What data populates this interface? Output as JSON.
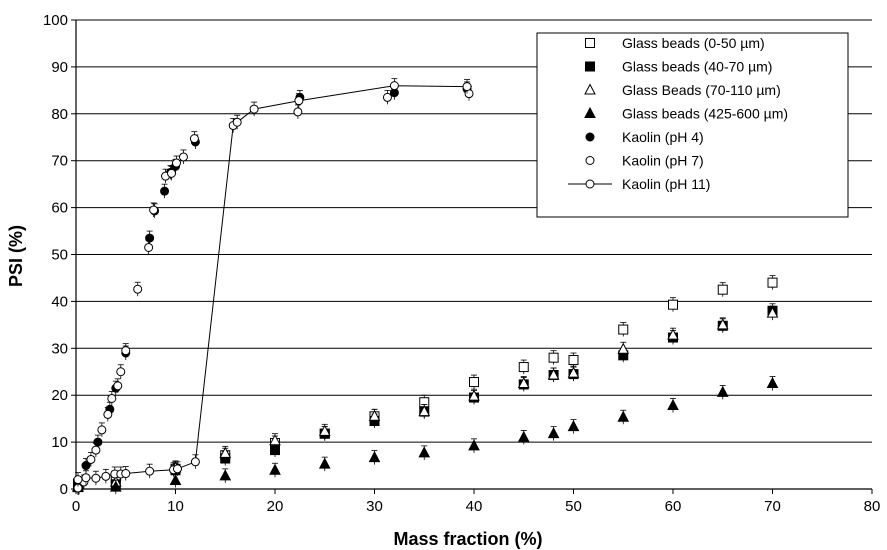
{
  "chart_data": {
    "type": "scatter",
    "title": "",
    "xlabel": "Mass fraction (%)",
    "ylabel": "PSI (%)",
    "xlim": [
      0,
      80
    ],
    "ylim": [
      0,
      100
    ],
    "x_ticks": [
      "0",
      "10",
      "20",
      "30",
      "40",
      "50",
      "60",
      "70",
      "80"
    ],
    "y_ticks": [
      "0",
      "10",
      "20",
      "30",
      "40",
      "50",
      "60",
      "70",
      "80",
      "90",
      "100"
    ],
    "grid": "horizontal",
    "legend_position": "top-right",
    "series": [
      {
        "name": "Glass beads (0-50 µm)",
        "marker": "square-open",
        "points": [
          [
            0.2,
            1.2
          ],
          [
            4,
            2.2
          ],
          [
            10,
            4.3
          ],
          [
            15,
            7.2
          ],
          [
            20,
            9.8
          ],
          [
            25,
            11.8
          ],
          [
            30,
            15.5
          ],
          [
            35,
            18.5
          ],
          [
            40,
            22.8
          ],
          [
            45,
            26
          ],
          [
            48,
            28
          ],
          [
            50,
            27.5
          ],
          [
            55,
            34
          ],
          [
            60,
            39.3
          ],
          [
            65,
            42.5
          ],
          [
            70,
            44
          ]
        ]
      },
      {
        "name": "Glass beads (40-70 µm)",
        "marker": "square-filled",
        "points": [
          [
            0.2,
            0.6
          ],
          [
            4,
            1
          ],
          [
            10,
            4
          ],
          [
            15,
            6.5
          ],
          [
            20,
            8.3
          ],
          [
            25,
            11.8
          ],
          [
            30,
            14.5
          ],
          [
            35,
            16.5
          ],
          [
            40,
            19.5
          ],
          [
            45,
            22.3
          ],
          [
            48,
            24.3
          ],
          [
            50,
            24.5
          ],
          [
            55,
            28.5
          ],
          [
            60,
            32.3
          ],
          [
            65,
            34.8
          ],
          [
            70,
            38
          ]
        ]
      },
      {
        "name": "Glass Beads (70-110 µm)",
        "marker": "triangle-open",
        "points": [
          [
            0.2,
            0.5
          ],
          [
            4,
            1.5
          ],
          [
            10,
            4.5
          ],
          [
            15,
            7.6
          ],
          [
            20,
            10.3
          ],
          [
            25,
            12.3
          ],
          [
            30,
            15.5
          ],
          [
            35,
            16.5
          ],
          [
            40,
            19.8
          ],
          [
            45,
            22.5
          ],
          [
            48,
            24.3
          ],
          [
            50,
            24.7
          ],
          [
            55,
            29.8
          ],
          [
            60,
            32.8
          ],
          [
            65,
            35
          ],
          [
            70,
            37.5
          ]
        ]
      },
      {
        "name": "Glass beads (425-600 µm)",
        "marker": "triangle-filled",
        "points": [
          [
            0.2,
            0.3
          ],
          [
            4,
            0.4
          ],
          [
            10,
            1.8
          ],
          [
            15,
            2.8
          ],
          [
            20,
            4
          ],
          [
            25,
            5.3
          ],
          [
            30,
            6.7
          ],
          [
            35,
            7.7
          ],
          [
            40,
            9.2
          ],
          [
            45,
            11
          ],
          [
            48,
            11.8
          ],
          [
            50,
            13.3
          ],
          [
            55,
            15.3
          ],
          [
            60,
            17.8
          ],
          [
            65,
            20.6
          ],
          [
            70,
            22.5
          ]
        ]
      },
      {
        "name": "Kaolin (pH 4)",
        "marker": "circle-filled",
        "points": [
          [
            0.3,
            0.3
          ],
          [
            1,
            5
          ],
          [
            2.2,
            10
          ],
          [
            3.4,
            17
          ],
          [
            4,
            21.5
          ],
          [
            5,
            29
          ],
          [
            7.4,
            53.5
          ],
          [
            7.9,
            59.3
          ],
          [
            8.9,
            63.5
          ],
          [
            9.5,
            67.5
          ],
          [
            10,
            68.8
          ],
          [
            12,
            74
          ],
          [
            22.5,
            83.5
          ],
          [
            32,
            84.5
          ],
          [
            39.3,
            85.3
          ]
        ]
      },
      {
        "name": "Kaolin (pH 7)",
        "marker": "circle-open",
        "points": [
          [
            0.2,
            0.2
          ],
          [
            0.8,
            1.5
          ],
          [
            1.5,
            6.3
          ],
          [
            2,
            8.3
          ],
          [
            2.6,
            12.6
          ],
          [
            3.2,
            15.9
          ],
          [
            3.6,
            19.3
          ],
          [
            4.2,
            22
          ],
          [
            4.5,
            25
          ],
          [
            5,
            29.5
          ],
          [
            6.2,
            42.6
          ],
          [
            7.3,
            51.5
          ],
          [
            7.8,
            59.5
          ],
          [
            9,
            66.7
          ],
          [
            9.6,
            67.3
          ],
          [
            10.1,
            69.5
          ],
          [
            10.8,
            70.8
          ],
          [
            11.9,
            74.7
          ],
          [
            22.3,
            80.4
          ],
          [
            31.3,
            83.5
          ],
          [
            39.5,
            84.3
          ]
        ]
      },
      {
        "name": "Kaolin (pH 11)",
        "marker": "circle-open-line",
        "points": [
          [
            0.2,
            2
          ],
          [
            1,
            2.4
          ],
          [
            2,
            2.3
          ],
          [
            3,
            2.7
          ],
          [
            3.9,
            3.2
          ],
          [
            4.5,
            3.2
          ],
          [
            5,
            3.3
          ],
          [
            7.4,
            3.8
          ],
          [
            9.8,
            4.1
          ],
          [
            10.2,
            4.3
          ],
          [
            12,
            5.8
          ],
          [
            15.8,
            77.5
          ],
          [
            16.2,
            78.2
          ],
          [
            17.9,
            81
          ],
          [
            22.4,
            82.8
          ],
          [
            32,
            86
          ],
          [
            39.3,
            85.8
          ]
        ]
      }
    ]
  }
}
